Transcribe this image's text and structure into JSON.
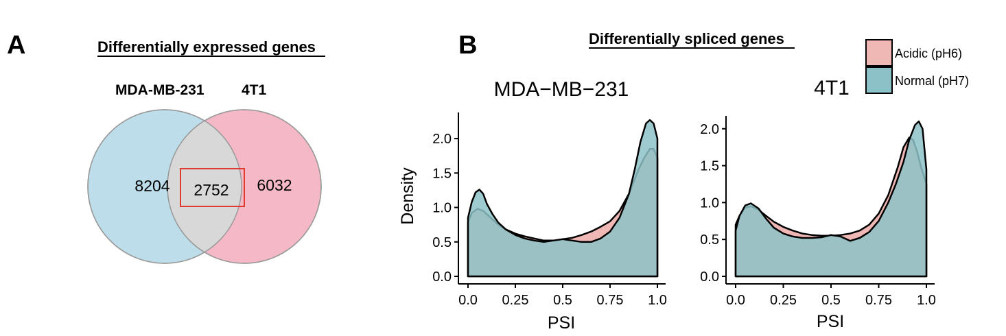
{
  "panel_a": {
    "letter": "A",
    "heading": "Differentially expressed genes",
    "sets": [
      {
        "label": "MDA-MB-231",
        "unique_count": "8204",
        "color": "#bcdde9"
      },
      {
        "label": "4T1",
        "unique_count": "6032",
        "color": "#f4b8c6"
      }
    ],
    "overlap_count": "2752",
    "overlap_color": "#d8d8d8",
    "highlight_color": "#e03a2f"
  },
  "panel_b": {
    "letter": "B",
    "heading": "Differentially spliced genes"
  },
  "chart_data": {
    "type": "area",
    "xlabel": "PSI",
    "ylabel": "Density",
    "legend": {
      "placement": "top-right",
      "entries": [
        {
          "name": "Acidic (pH6)",
          "color": "#f0b8b4"
        },
        {
          "name": "Normal (pH7)",
          "color": "#8cc2c7"
        }
      ]
    },
    "facets": [
      {
        "title": "MDA−MB−231",
        "xlim": [
          0,
          1
        ],
        "ylim": [
          0,
          2.3
        ],
        "x_ticks": [
          "0.0",
          "0.25",
          "0.5",
          "0.75",
          "1.0"
        ],
        "y_ticks": [
          "0.0",
          "0.5",
          "1.0",
          "1.5",
          "2.0"
        ],
        "series": [
          {
            "name": "Acidic (pH6)",
            "x": [
              0,
              0.02,
              0.05,
              0.08,
              0.12,
              0.16,
              0.2,
              0.25,
              0.3,
              0.35,
              0.4,
              0.45,
              0.5,
              0.55,
              0.6,
              0.65,
              0.7,
              0.75,
              0.8,
              0.85,
              0.9,
              0.93,
              0.96,
              0.98,
              1.0
            ],
            "y": [
              0.78,
              0.92,
              0.98,
              0.95,
              0.85,
              0.75,
              0.68,
              0.62,
              0.58,
              0.55,
              0.52,
              0.52,
              0.54,
              0.56,
              0.6,
              0.65,
              0.72,
              0.8,
              0.95,
              1.2,
              1.55,
              1.72,
              1.85,
              1.85,
              1.72
            ]
          },
          {
            "name": "Normal (pH7)",
            "x": [
              0,
              0.02,
              0.04,
              0.06,
              0.08,
              0.1,
              0.13,
              0.16,
              0.2,
              0.25,
              0.3,
              0.35,
              0.4,
              0.45,
              0.5,
              0.55,
              0.6,
              0.65,
              0.7,
              0.75,
              0.8,
              0.85,
              0.88,
              0.91,
              0.94,
              0.96,
              0.98,
              1.0
            ],
            "y": [
              0.85,
              1.08,
              1.22,
              1.26,
              1.2,
              1.05,
              0.9,
              0.78,
              0.68,
              0.6,
              0.55,
              0.52,
              0.5,
              0.52,
              0.54,
              0.52,
              0.5,
              0.5,
              0.55,
              0.65,
              0.85,
              1.2,
              1.55,
              1.95,
              2.22,
              2.27,
              2.22,
              2.0
            ]
          }
        ]
      },
      {
        "title": "4T1",
        "xlim": [
          0,
          1
        ],
        "ylim": [
          0,
          2.1
        ],
        "x_ticks": [
          "0.0",
          "0.25",
          "0.5",
          "0.75",
          "1.0"
        ],
        "y_ticks": [
          "0.0",
          "0.5",
          "1.0",
          "1.5",
          "2.0"
        ],
        "series": [
          {
            "name": "Acidic (pH6)",
            "x": [
              0,
              0.02,
              0.05,
              0.08,
              0.12,
              0.16,
              0.2,
              0.25,
              0.3,
              0.35,
              0.4,
              0.45,
              0.5,
              0.55,
              0.6,
              0.65,
              0.7,
              0.75,
              0.8,
              0.85,
              0.88,
              0.91,
              0.93,
              0.95,
              0.97,
              1.0
            ],
            "y": [
              0.7,
              0.82,
              0.93,
              0.95,
              0.9,
              0.82,
              0.74,
              0.67,
              0.62,
              0.58,
              0.56,
              0.55,
              0.55,
              0.56,
              0.58,
              0.62,
              0.7,
              0.85,
              1.1,
              1.48,
              1.75,
              1.88,
              1.85,
              1.7,
              1.5,
              1.25
            ]
          },
          {
            "name": "Normal (pH7)",
            "x": [
              0,
              0.02,
              0.05,
              0.08,
              0.12,
              0.16,
              0.2,
              0.25,
              0.3,
              0.35,
              0.4,
              0.45,
              0.5,
              0.55,
              0.6,
              0.65,
              0.7,
              0.75,
              0.8,
              0.84,
              0.88,
              0.91,
              0.94,
              0.96,
              0.98,
              1.0
            ],
            "y": [
              0.62,
              0.82,
              0.96,
              0.99,
              0.92,
              0.78,
              0.66,
              0.58,
              0.54,
              0.52,
              0.52,
              0.53,
              0.56,
              0.54,
              0.48,
              0.52,
              0.6,
              0.75,
              1.0,
              1.25,
              1.55,
              1.85,
              2.05,
              2.1,
              2.0,
              1.45
            ]
          }
        ]
      }
    ]
  }
}
